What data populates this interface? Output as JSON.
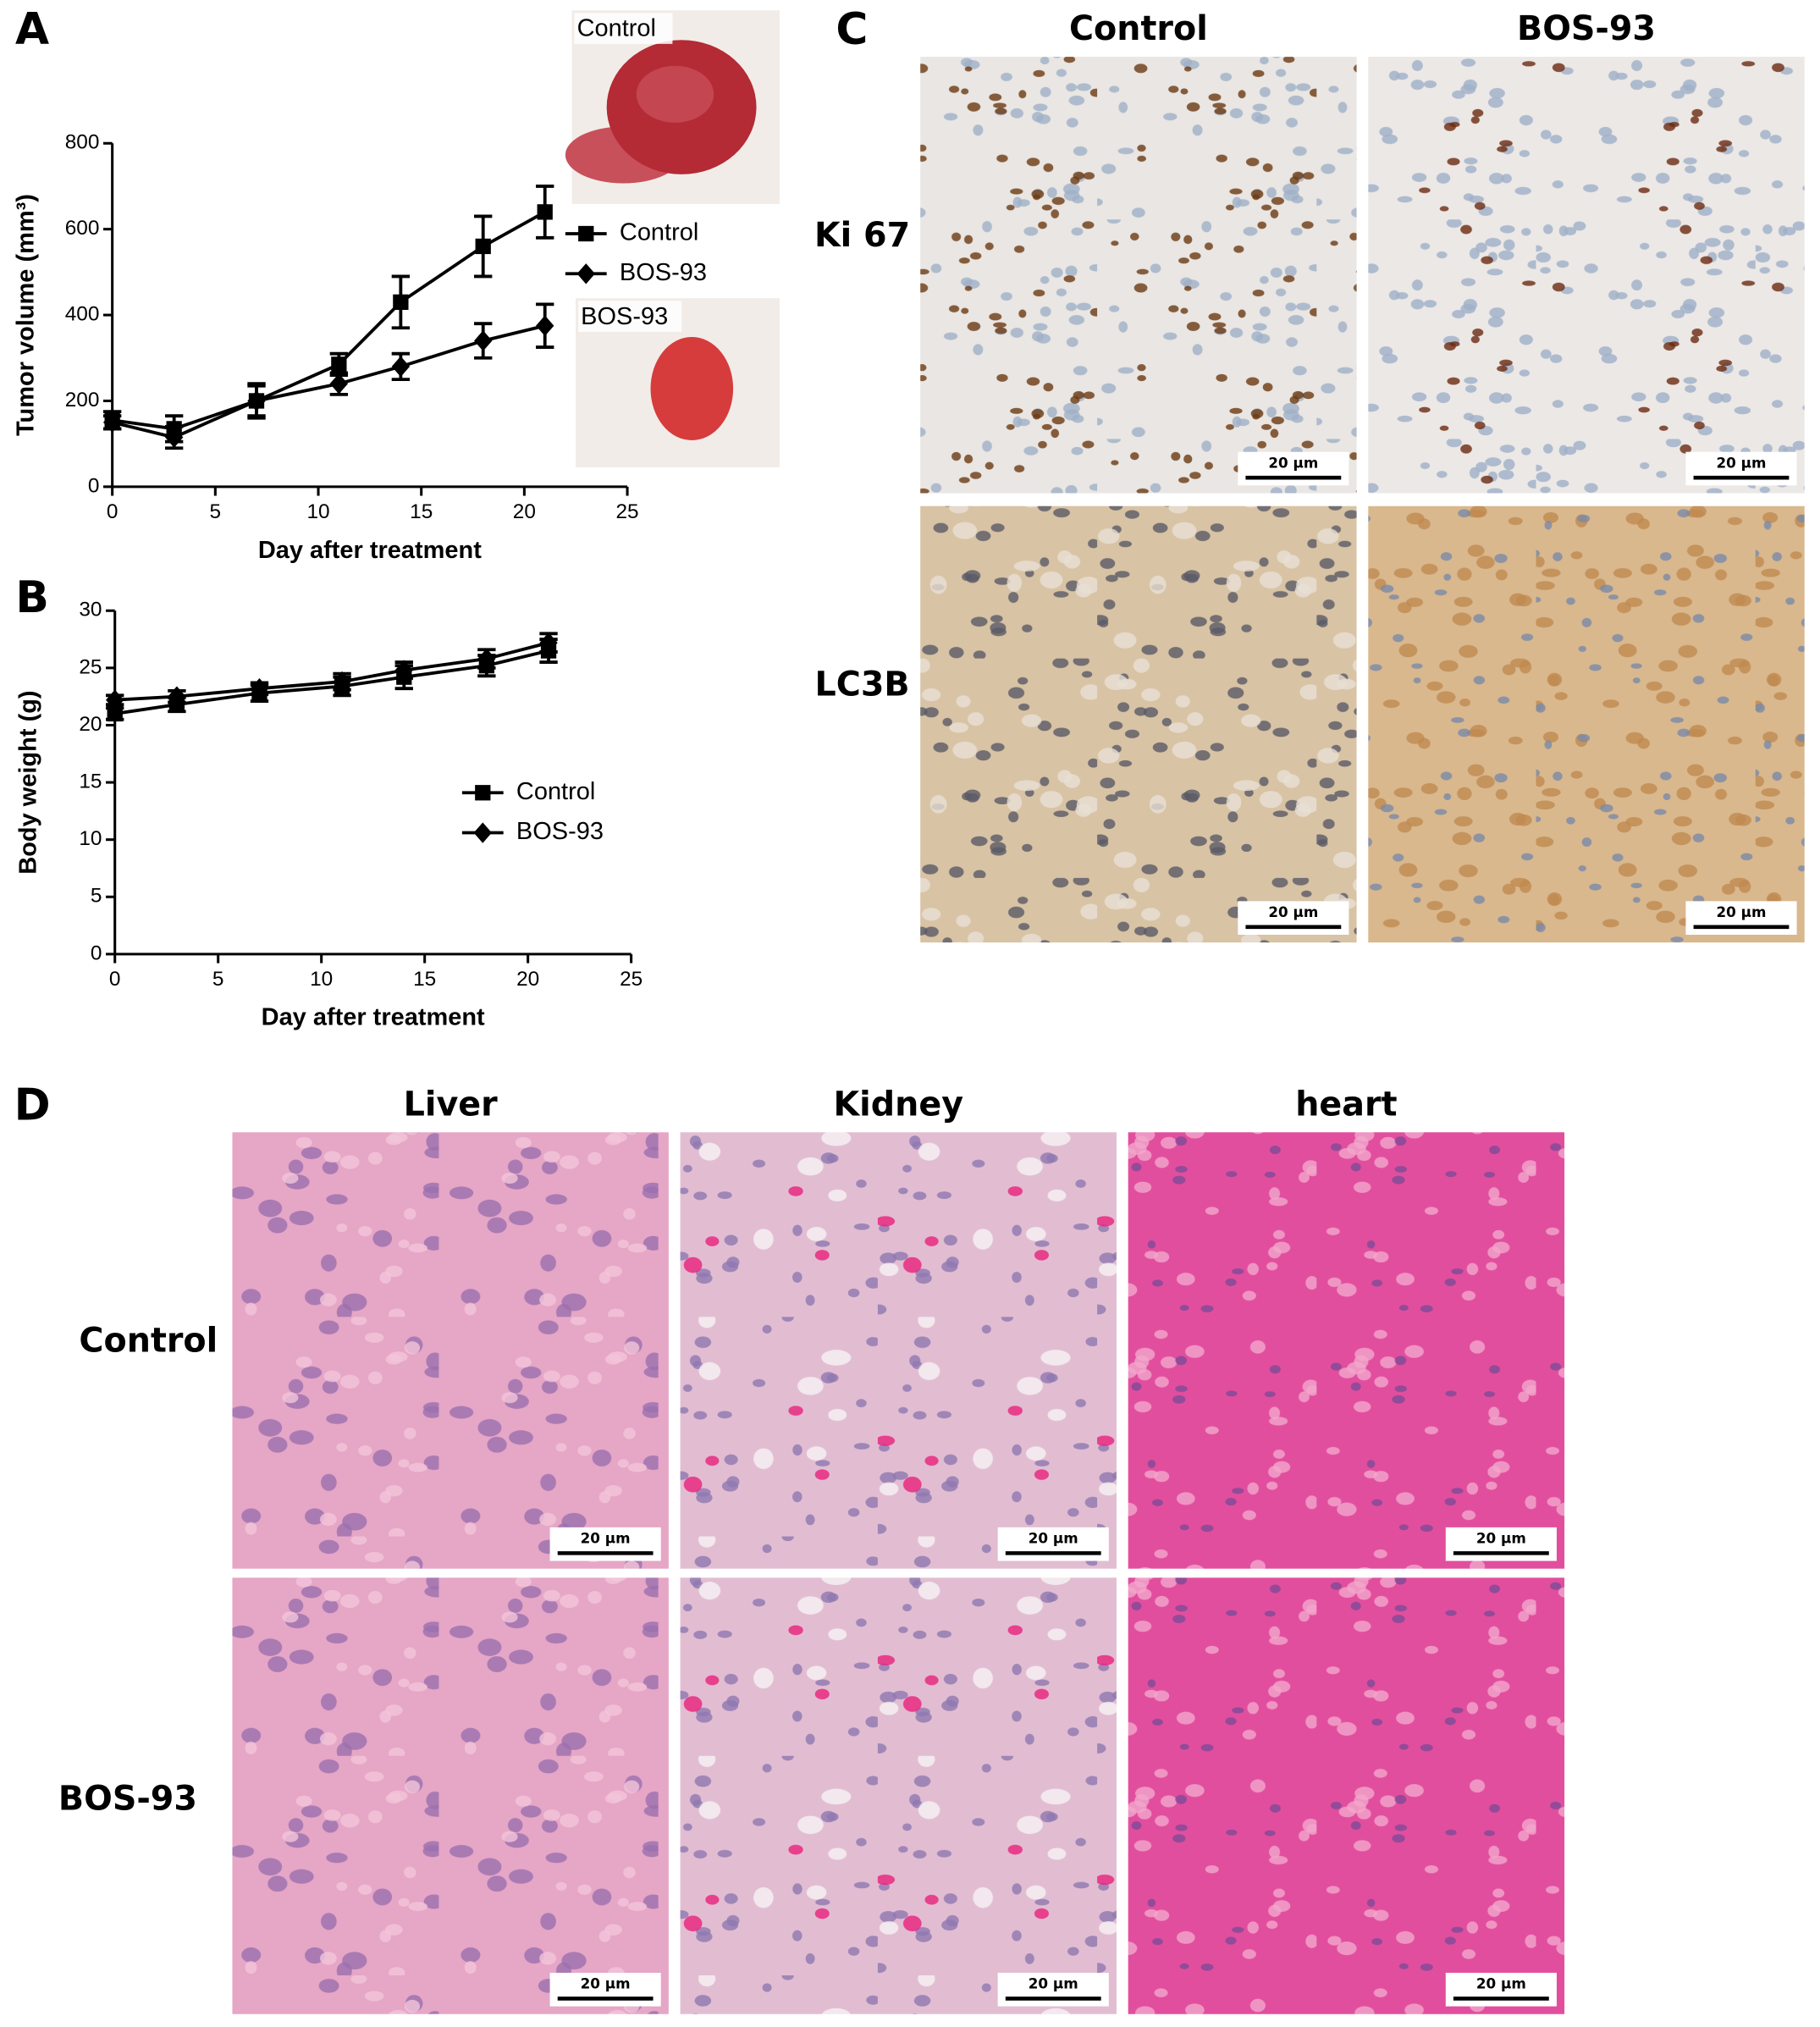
{
  "panel_labels": [
    "A",
    "B",
    "C",
    "D"
  ],
  "chart_data": [
    {
      "type": "line",
      "x_label": "Day after treatment",
      "y_label": "Tumor volume (mm³)",
      "x": [
        0,
        3,
        7,
        11,
        14,
        18,
        21
      ],
      "series": [
        {
          "name": "Control",
          "color": "#000000",
          "marker": "square",
          "values": [
            155,
            135,
            200,
            285,
            430,
            560,
            640
          ],
          "errors": [
            20,
            30,
            40,
            25,
            60,
            70,
            60
          ]
        },
        {
          "name": "BOS-93",
          "color": "#000000",
          "marker": "diamond",
          "values": [
            150,
            115,
            200,
            240,
            280,
            340,
            375
          ],
          "errors": [
            15,
            25,
            35,
            25,
            30,
            40,
            50
          ]
        }
      ],
      "xlim": [
        0,
        25
      ],
      "xticks": [
        0,
        5,
        10,
        15,
        20,
        25
      ],
      "ylim": [
        0,
        800
      ],
      "yticks": [
        0,
        200,
        400,
        600,
        800
      ],
      "legend": "outside right"
    },
    {
      "type": "line",
      "x_label": "Day after treatment",
      "y_label": "Body weight (g)",
      "x": [
        0,
        3,
        7,
        11,
        14,
        18,
        21
      ],
      "series": [
        {
          "name": "Control",
          "color": "#000000",
          "marker": "square",
          "values": [
            21,
            21.8,
            22.8,
            23.4,
            24.2,
            25.2,
            26.5
          ],
          "errors": [
            0.5,
            0.6,
            0.7,
            0.8,
            1,
            0.9,
            1
          ]
        },
        {
          "name": "BOS-93",
          "color": "#000000",
          "marker": "diamond",
          "values": [
            22.2,
            22.5,
            23.2,
            23.8,
            24.8,
            25.8,
            27.2
          ],
          "errors": [
            0.4,
            0.5,
            0.5,
            0.7,
            0.7,
            0.8,
            0.8
          ]
        }
      ],
      "xlim": [
        0,
        25
      ],
      "xticks": [
        0,
        5,
        10,
        15,
        20,
        25
      ],
      "ylim": [
        0,
        30
      ],
      "yticks": [
        0,
        5,
        10,
        15,
        20,
        25,
        30
      ],
      "legend": "center right"
    }
  ],
  "photos": [
    "Control",
    "BOS-93"
  ],
  "panel_c": {
    "columns": [
      "Control",
      "BOS-93"
    ],
    "rows": [
      "Ki 67",
      "LC3B"
    ],
    "scale_bars": [
      [
        "20 μm",
        "20 μm"
      ],
      [
        "20 μm",
        "20 μm"
      ]
    ]
  },
  "panel_d": {
    "columns": [
      "Liver",
      "Kidney",
      "heart"
    ],
    "rows": [
      "Control",
      "BOS-93"
    ],
    "scale_bars": [
      [
        "20 μm",
        "20 μm",
        "20 μm"
      ],
      [
        "20 μm",
        "20 μm",
        "20 μm"
      ]
    ]
  }
}
